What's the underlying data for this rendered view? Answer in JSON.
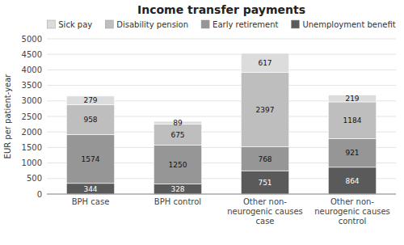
{
  "chart_data": {
    "type": "bar",
    "stacked": true,
    "title": "Income transfer payments",
    "ylabel": "EUR per patient-year",
    "categories": [
      "BPH case",
      "BPH control",
      "Other non-\nneurogenic causes\ncase",
      "Other non-\nneurogenic causes\ncontrol"
    ],
    "series": [
      {
        "name": "Unemployment benefit",
        "color": "#5a5a5a",
        "values": [
          344,
          328,
          751,
          864
        ]
      },
      {
        "name": "Early retirement",
        "color": "#969696",
        "values": [
          1574,
          1250,
          768,
          921
        ]
      },
      {
        "name": "Disability pension",
        "color": "#bebebe",
        "values": [
          958,
          675,
          2397,
          1184
        ]
      },
      {
        "name": "Sick pay",
        "color": "#dcdcdc",
        "values": [
          279,
          89,
          617,
          219
        ]
      }
    ],
    "ylim": [
      0,
      5000
    ],
    "yticks": [
      0,
      500,
      1000,
      1500,
      2000,
      2500,
      3000,
      3500,
      4000,
      4500,
      5000
    ],
    "grid": true,
    "legend": "top",
    "data_labels": true
  }
}
